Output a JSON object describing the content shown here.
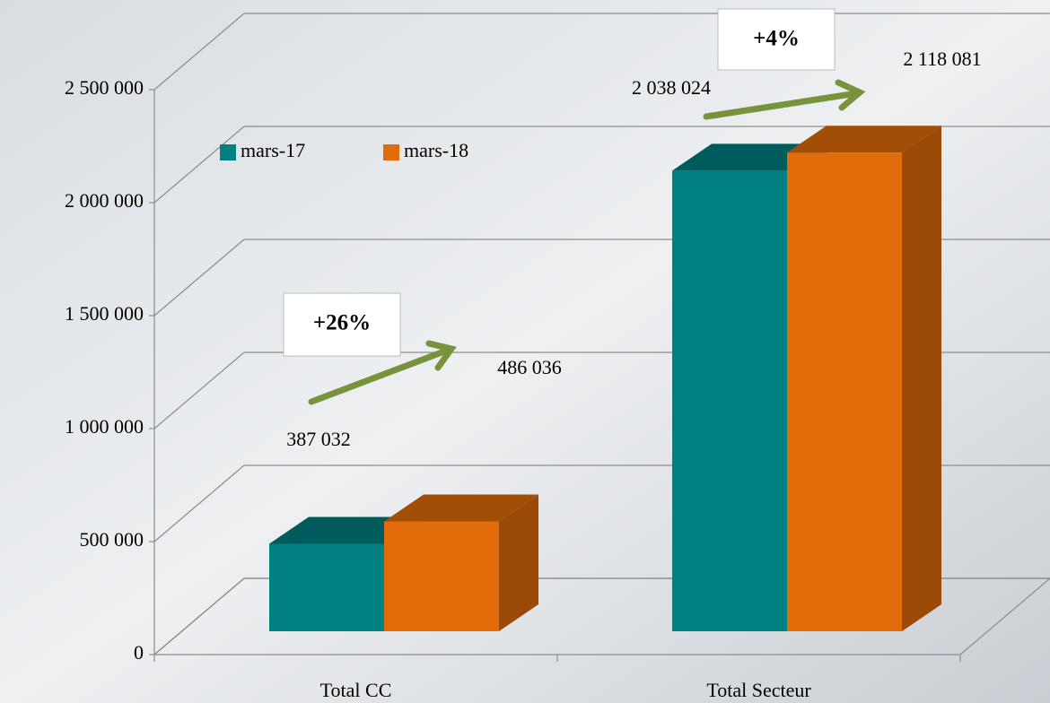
{
  "chart_data": {
    "type": "bar3d",
    "categories": [
      "Total CC",
      "Total Secteur"
    ],
    "series": [
      {
        "name": "mars-17",
        "color": "#008080",
        "values": [
          387032,
          2038024
        ],
        "value_labels": [
          "387 032",
          "2 038 024"
        ]
      },
      {
        "name": "mars-18",
        "color": "#e36c0a",
        "values": [
          486036,
          2118081
        ],
        "value_labels": [
          "486 036",
          "2 118 081"
        ]
      }
    ],
    "ylim": [
      0,
      2500000
    ],
    "yticks": [
      {
        "value": 0,
        "label": "0"
      },
      {
        "value": 500000,
        "label": "500 000"
      },
      {
        "value": 1000000,
        "label": "1 000 000"
      },
      {
        "value": 1500000,
        "label": "1 500 000"
      },
      {
        "value": 2000000,
        "label": "2 000 000"
      },
      {
        "value": 2500000,
        "label": "2 500 000"
      }
    ],
    "grid": true,
    "legend": "top-left",
    "annotations": [
      "+26%",
      "+4%"
    ]
  }
}
